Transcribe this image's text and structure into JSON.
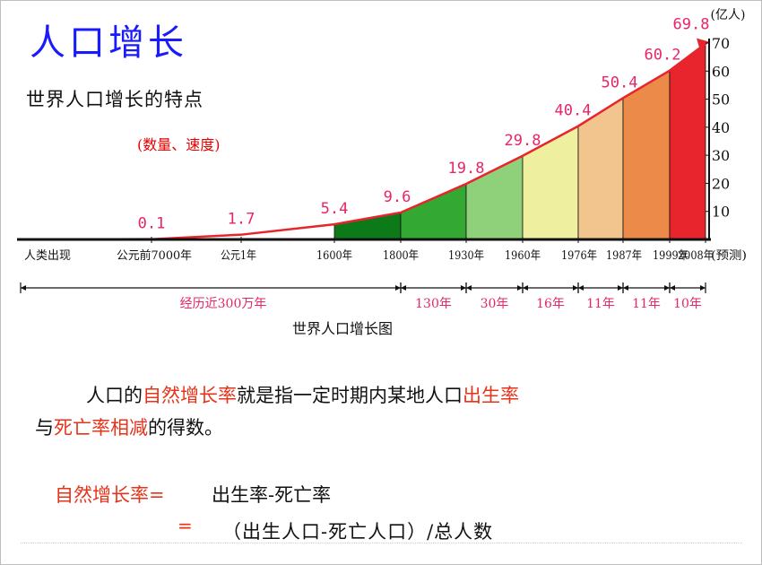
{
  "slide": {
    "title": "人口增长",
    "subtitle": "世界人口增长的特点",
    "note": "(数量、速度)",
    "chart_caption": "世界人口增长图",
    "definition": {
      "line1_indent": "人口的",
      "line1_term": "自然增长率",
      "line1_mid": "就是指一定时期内某地人口",
      "line1_birth": "出生率",
      "line2_start": "与",
      "line2_term": "死亡率相减",
      "line2_end": "的得数。"
    },
    "formula": {
      "label": "自然增长率=",
      "rhs1": "出生率-死亡率",
      "eq2": "=",
      "rhs2": "（出生人口-死亡人口）/总人数"
    }
  },
  "chart_data": {
    "type": "area",
    "title": "",
    "xlabel": "",
    "ylabel": "(亿人)",
    "ylim": [
      0,
      70
    ],
    "yticks": [
      10,
      20,
      30,
      40,
      50,
      60,
      70
    ],
    "x_labels": [
      "人类出现",
      "公元前7000年",
      "公元1年",
      "1600年",
      "1800年",
      "1930年",
      "1960年",
      "1976年",
      "1987年",
      "1999年",
      "2008年",
      "(预测)"
    ],
    "points": [
      {
        "label": "人类出现",
        "value": null
      },
      {
        "label": "公元前7000年",
        "value": 0.1
      },
      {
        "label": "公元1年",
        "value": 1.7
      },
      {
        "label": "1600年",
        "value": 5.4
      },
      {
        "label": "1800年",
        "value": 9.6
      },
      {
        "label": "1930年",
        "value": 19.8
      },
      {
        "label": "1960年",
        "value": 29.8
      },
      {
        "label": "1976年",
        "value": 40.4
      },
      {
        "label": "1987年",
        "value": 50.4
      },
      {
        "label": "1999年",
        "value": 60.2
      },
      {
        "label": "2008年",
        "value": 69.8
      }
    ],
    "value_labels": [
      "0.1",
      "1.7",
      "5.4",
      "9.6",
      "19.8",
      "29.8",
      "40.4",
      "50.4",
      "60.2",
      "69.8"
    ],
    "intervals": [
      "经历近300万年",
      "130年",
      "30年",
      "16年",
      "11年",
      "11年",
      "10年"
    ],
    "colors": {
      "line": "#e8242c",
      "axis": "#111111",
      "value_label": "#e8246a",
      "interval_label": "#e8246a",
      "segments": [
        "#0d7a1a",
        "#33a833",
        "#8fd17a",
        "#eef0a0",
        "#f2c48e",
        "#ec8a4a",
        "#e8242c"
      ]
    }
  }
}
